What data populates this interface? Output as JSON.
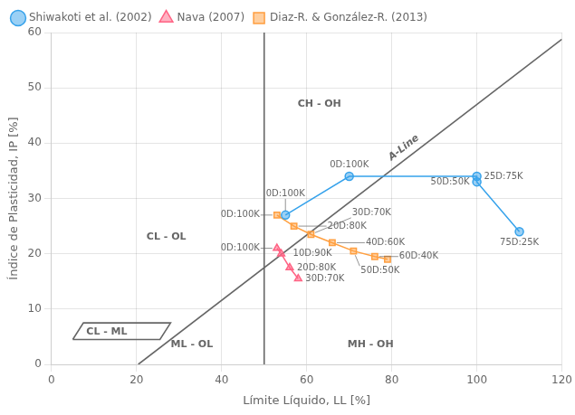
{
  "chart_data": {
    "type": "line",
    "xlabel": "Límite Líquido, LL [%]",
    "ylabel": "Índice de Plasticidad, IP [%]",
    "xlim": [
      0,
      120
    ],
    "ylim": [
      0,
      60
    ],
    "xticks": [
      0,
      20,
      40,
      60,
      80,
      100,
      120
    ],
    "yticks": [
      0,
      10,
      20,
      30,
      40,
      50,
      60
    ],
    "grid": true,
    "legend": "upper left",
    "series": [
      {
        "name": "Shiwakoti et al. (2002)",
        "marker": "circle",
        "x": [
          55,
          70,
          100,
          100,
          110
        ],
        "values": [
          27,
          34,
          34,
          33,
          24
        ],
        "point_labels": [
          "0D:100K",
          "0D:100K",
          "25D:75K",
          "50D:50K",
          "75D:25K"
        ]
      },
      {
        "name": "Nava (2007)",
        "marker": "triangle",
        "x": [
          53,
          54,
          56,
          58
        ],
        "values": [
          21,
          20,
          17.5,
          15.5
        ],
        "point_labels": [
          "0D:100K",
          "10D:90K",
          "20D:80K",
          "30D:70K"
        ]
      },
      {
        "name": "Diaz-R. & González-R. (2013)",
        "marker": "square",
        "x": [
          53,
          57,
          61,
          66,
          71,
          76,
          79
        ],
        "values": [
          27,
          25,
          23.5,
          22,
          20.5,
          19.5,
          19
        ],
        "point_labels": [
          "0D:100K",
          "20D:80K",
          "30D:70K",
          "40D:60K",
          "50D:50K",
          "60D:40K",
          null
        ]
      }
    ],
    "vertical_lines": [
      50
    ],
    "lines": [
      {
        "x": [
          20.4,
          120
        ],
        "y": [
          0,
          58.8
        ],
        "label": "A-Line",
        "label_x": 84,
        "label_y": 38
      },
      {
        "x": [
          5,
          25.5,
          28,
          7.5,
          5
        ],
        "y": [
          4.5,
          4.5,
          7.5,
          7.5,
          4.5
        ]
      }
    ],
    "annotations": [
      {
        "text": "CL - ML",
        "x": 13,
        "y": 5.8
      },
      {
        "text": "ML - OL",
        "x": 33,
        "y": 3.5
      },
      {
        "text": "CL - OL",
        "x": 27,
        "y": 23
      },
      {
        "text": "CH - OH",
        "x": 63,
        "y": 47
      },
      {
        "text": "MH - OH",
        "x": 75,
        "y": 3.5
      }
    ]
  }
}
